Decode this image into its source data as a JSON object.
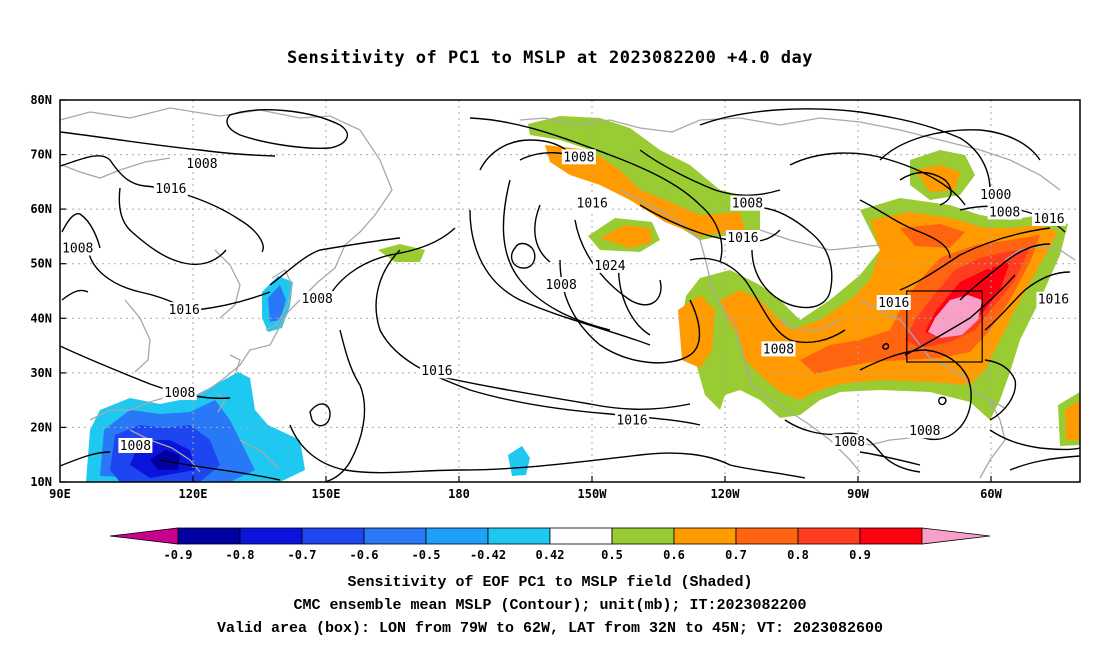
{
  "title": "Sensitivity of PC1 to MSLP at 2023082200 +4.0 day",
  "captions": [
    "Sensitivity of EOF PC1 to MSLP field (Shaded)",
    "CMC ensemble mean MSLP (Contour); unit(mb); IT:2023082200",
    "Valid area (box): LON from 79W to 62W, LAT from 32N to 45N; VT: 2023082600"
  ],
  "map": {
    "lat_labels": [
      "80N",
      "70N",
      "60N",
      "50N",
      "40N",
      "30N",
      "20N",
      "10N"
    ],
    "lon_labels": [
      "90E",
      "120E",
      "150E",
      "180",
      "150W",
      "120W",
      "90W",
      "60W"
    ],
    "domain": {
      "lon_min_east": 90,
      "lon_max_east": 320,
      "lat_min": 10,
      "lat_max": 80
    },
    "valid_box": {
      "lon_from": "79W",
      "lon_to": "62W",
      "lat_from": "32N",
      "lat_to": "45N"
    }
  },
  "contour_labels": [
    {
      "text": "1008",
      "lon": 122,
      "lat": 68.3
    },
    {
      "text": "1016",
      "lon": 115,
      "lat": 63.7
    },
    {
      "text": "1008",
      "lon": 94,
      "lat": 52.8
    },
    {
      "text": "1016",
      "lon": 118,
      "lat": 41.5
    },
    {
      "text": "1008",
      "lon": 148,
      "lat": 43.5
    },
    {
      "text": "1008",
      "lon": 117,
      "lat": 26.3
    },
    {
      "text": "1008",
      "lon": 107,
      "lat": 16.6
    },
    {
      "text": "1016",
      "lon": 175,
      "lat": 30.3
    },
    {
      "text": "1008",
      "lon": 207,
      "lat": 69.5
    },
    {
      "text": "1016",
      "lon": 210,
      "lat": 61.0
    },
    {
      "text": "1024",
      "lon": 214,
      "lat": 49.6
    },
    {
      "text": "1008",
      "lon": 203,
      "lat": 46.1
    },
    {
      "text": "1016",
      "lon": 219,
      "lat": 21.3
    },
    {
      "text": "1008",
      "lon": 245,
      "lat": 61.0
    },
    {
      "text": "1016",
      "lon": 244,
      "lat": 54.7
    },
    {
      "text": "1008",
      "lon": 252,
      "lat": 34.3
    },
    {
      "text": "1008",
      "lon": 268,
      "lat": 17.3
    },
    {
      "text": "1008",
      "lon": 285,
      "lat": 19.3
    },
    {
      "text": "1016",
      "lon": 278,
      "lat": 42.8
    },
    {
      "text": "1000",
      "lon": 301,
      "lat": 62.6
    },
    {
      "text": "1008",
      "lon": 303,
      "lat": 59.4
    },
    {
      "text": "1016",
      "lon": 313,
      "lat": 58.2
    },
    {
      "text": "1016",
      "lon": 314,
      "lat": 43.4
    }
  ],
  "colorbar": {
    "labels": [
      "-0.9",
      "-0.8",
      "-0.7",
      "-0.6",
      "-0.5",
      "-0.42",
      "0.42",
      "0.5",
      "0.6",
      "0.7",
      "0.8",
      "0.9"
    ],
    "colors": [
      "#c8008c",
      "#0000a0",
      "#0a14dc",
      "#1e46f0",
      "#2878f8",
      "#1ea0f8",
      "#1ec8f0",
      "#ffffff",
      "#98cc32",
      "#ff9a00",
      "#ff6410",
      "#ff3c1e",
      "#ff0010",
      "#f8a0c8"
    ]
  },
  "shading": {
    "negative_colors": {
      "-0.9": "#0000a0",
      "-0.8": "#0a14dc",
      "-0.7": "#1e46f0",
      "-0.5": "#2878f8",
      "-0.42": "#1ec8f0"
    },
    "positive_colors": {
      "0.42": "#98cc32",
      "0.5": "#ff9a00",
      "0.6": "#ff6410",
      "0.8": "#ff0010",
      "0.9": "#f8a0c8"
    }
  }
}
